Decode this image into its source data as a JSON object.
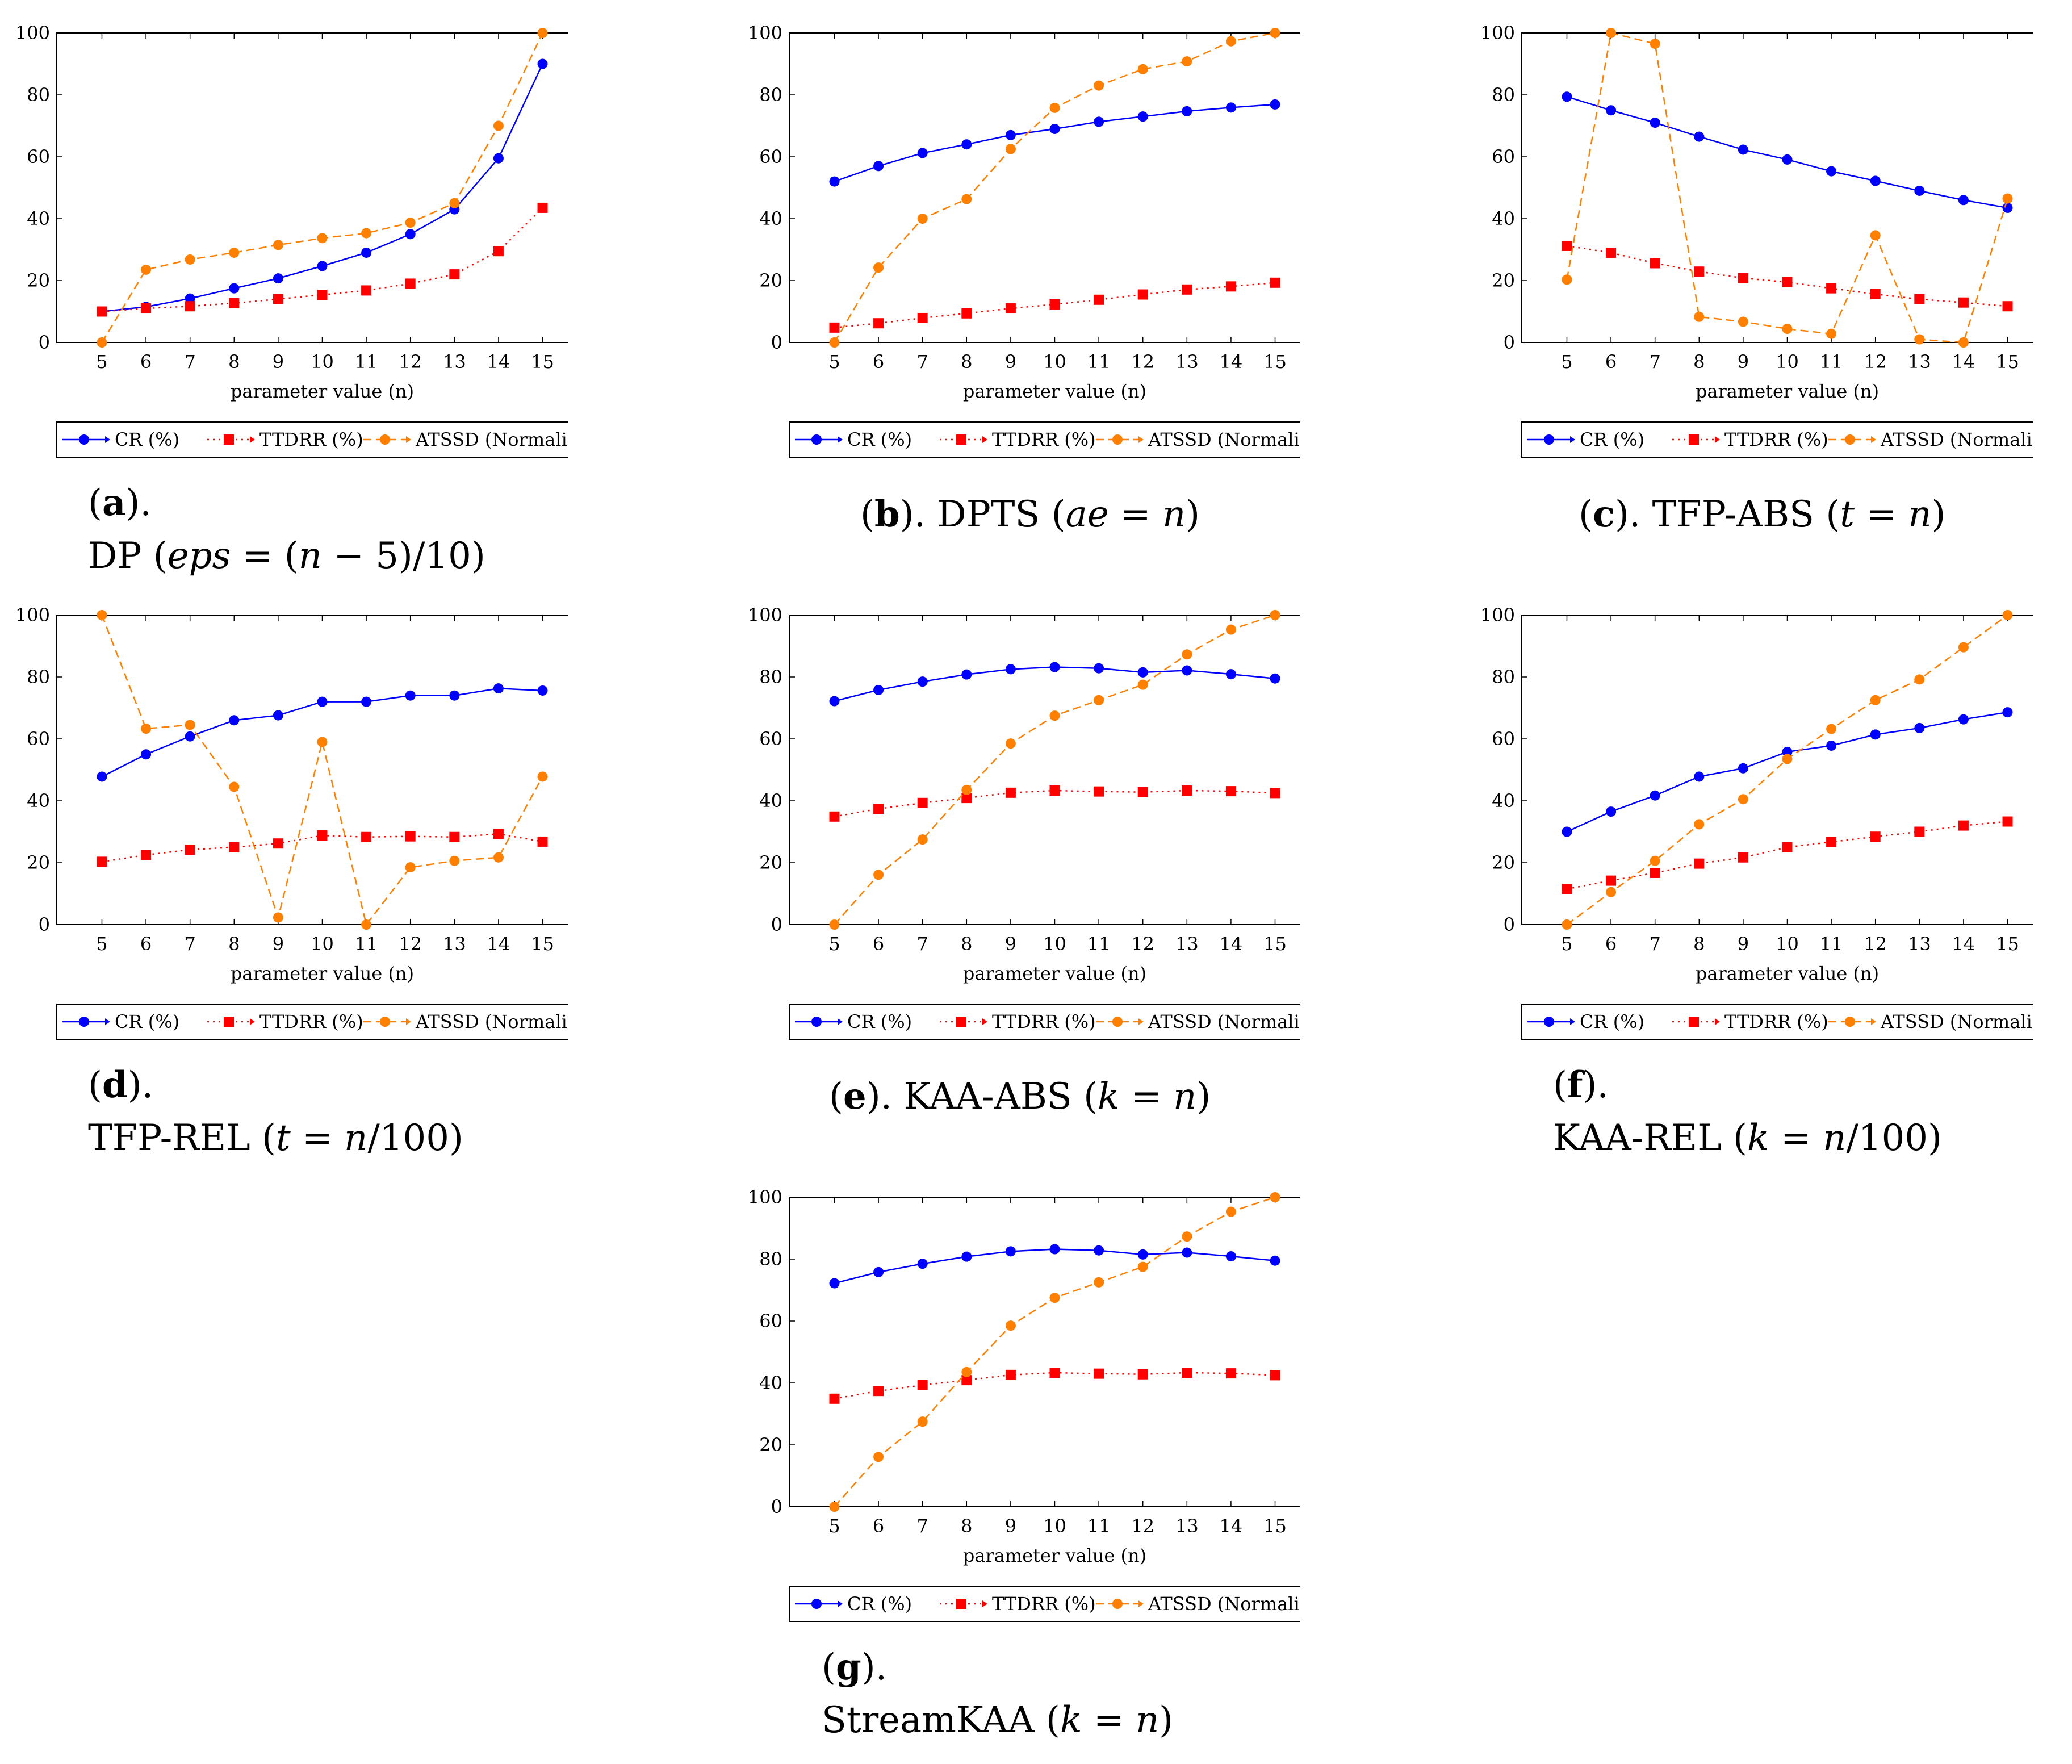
{
  "axis_xlabel": "parameter value (n)",
  "legend_labels": {
    "cr": "CR (%)",
    "ttdrr": "TTDRR (%)",
    "atssd": "ATSSD (Normalized)"
  },
  "colors": {
    "cr": "#0000ff",
    "ttdrr": "#ff0000",
    "atssd": "#ff8000"
  },
  "chart_data": [
    {
      "id": "a",
      "type": "line",
      "label": "a",
      "caption_parts": [
        "DP (",
        "eps",
        " = (",
        "n",
        " − 5)/10)"
      ],
      "x": [
        5,
        6,
        7,
        8,
        9,
        10,
        11,
        12,
        13,
        14,
        15
      ],
      "ylim": [
        0,
        100
      ],
      "yticks": [
        0,
        20,
        40,
        60,
        80,
        100
      ],
      "xlabel": "parameter value (n)",
      "series": [
        {
          "name": "CR (%)",
          "key": "cr",
          "values": [
            10,
            11.5,
            14.2,
            17.5,
            20.7,
            24.7,
            29,
            35,
            43,
            59.5,
            90
          ]
        },
        {
          "name": "TTDRR (%)",
          "key": "ttdrr",
          "values": [
            10,
            11,
            11.7,
            12.7,
            14,
            15.4,
            16.8,
            19,
            22,
            29.5,
            43.5
          ]
        },
        {
          "name": "ATSSD (Normalized)",
          "key": "atssd",
          "values": [
            0,
            23.5,
            26.8,
            29,
            31.5,
            33.7,
            35.3,
            38.7,
            45,
            70,
            100
          ]
        }
      ]
    },
    {
      "id": "b",
      "type": "line",
      "label": "b",
      "caption_parts": [
        "DPTS (",
        "ae",
        " = ",
        "n",
        ")"
      ],
      "x": [
        5,
        6,
        7,
        8,
        9,
        10,
        11,
        12,
        13,
        14,
        15
      ],
      "ylim": [
        0,
        100
      ],
      "yticks": [
        0,
        20,
        40,
        60,
        80,
        100
      ],
      "xlabel": "parameter value (n)",
      "series": [
        {
          "name": "CR (%)",
          "key": "cr",
          "values": [
            52,
            57,
            61.2,
            64,
            67,
            69,
            71.3,
            73,
            74.7,
            75.9,
            76.9
          ]
        },
        {
          "name": "TTDRR (%)",
          "key": "ttdrr",
          "values": [
            4.8,
            6.2,
            7.9,
            9.4,
            11,
            12.3,
            13.8,
            15.5,
            17.1,
            18.1,
            19.3
          ]
        },
        {
          "name": "ATSSD (Normalized)",
          "key": "atssd",
          "values": [
            0,
            24.2,
            40,
            46.3,
            62.5,
            75.8,
            83,
            88.3,
            90.8,
            97.3,
            100
          ]
        }
      ]
    },
    {
      "id": "c",
      "type": "line",
      "label": "c",
      "caption_parts": [
        "TFP-ABS (",
        "t",
        " = ",
        "n",
        ")"
      ],
      "x": [
        5,
        6,
        7,
        8,
        9,
        10,
        11,
        12,
        13,
        14,
        15
      ],
      "ylim": [
        0,
        100
      ],
      "yticks": [
        0,
        20,
        40,
        60,
        80,
        100
      ],
      "xlabel": "parameter value (n)",
      "series": [
        {
          "name": "CR (%)",
          "key": "cr",
          "values": [
            79.4,
            75,
            71,
            66.5,
            62.3,
            59.1,
            55.3,
            52.2,
            49,
            46,
            43.5
          ]
        },
        {
          "name": "TTDRR (%)",
          "key": "ttdrr",
          "values": [
            31.2,
            29,
            25.6,
            22.9,
            20.8,
            19.5,
            17.5,
            15.6,
            14,
            12.9,
            11.7
          ]
        },
        {
          "name": "ATSSD (Normalized)",
          "key": "atssd",
          "values": [
            20.3,
            100,
            96.5,
            8.3,
            6.7,
            4.4,
            2.8,
            34.6,
            1,
            0,
            46.5
          ]
        }
      ]
    },
    {
      "id": "d",
      "type": "line",
      "label": "d",
      "caption_parts": [
        "TFP-REL (",
        "t",
        " = ",
        "n",
        "/100)"
      ],
      "x": [
        5,
        6,
        7,
        8,
        9,
        10,
        11,
        12,
        13,
        14,
        15
      ],
      "ylim": [
        0,
        100
      ],
      "yticks": [
        0,
        20,
        40,
        60,
        80,
        100
      ],
      "xlabel": "parameter value (n)",
      "series": [
        {
          "name": "CR (%)",
          "key": "cr",
          "values": [
            47.8,
            55,
            60.8,
            66,
            67.6,
            72,
            72,
            74,
            74,
            76.3,
            75.6
          ]
        },
        {
          "name": "TTDRR (%)",
          "key": "ttdrr",
          "values": [
            20.3,
            22.5,
            24.2,
            25,
            26.2,
            28.8,
            28.3,
            28.5,
            28.3,
            29.3,
            26.8
          ]
        },
        {
          "name": "ATSSD (Normalized)",
          "key": "atssd",
          "values": [
            100,
            63.3,
            64.5,
            44.5,
            2.3,
            59,
            0,
            18.5,
            20.6,
            21.7,
            47.8
          ]
        }
      ]
    },
    {
      "id": "e",
      "type": "line",
      "label": "e",
      "caption_parts": [
        "KAA-ABS (",
        "k",
        " = ",
        "n",
        ")"
      ],
      "x": [
        5,
        6,
        7,
        8,
        9,
        10,
        11,
        12,
        13,
        14,
        15
      ],
      "ylim": [
        0,
        100
      ],
      "yticks": [
        0,
        20,
        40,
        60,
        80,
        100
      ],
      "xlabel": "parameter value (n)",
      "series": [
        {
          "name": "CR (%)",
          "key": "cr",
          "values": [
            72.2,
            75.8,
            78.5,
            80.8,
            82.5,
            83.2,
            82.8,
            81.5,
            82.1,
            80.9,
            79.5
          ]
        },
        {
          "name": "TTDRR (%)",
          "key": "ttdrr",
          "values": [
            34.9,
            37.4,
            39.3,
            40.9,
            42.6,
            43.3,
            43,
            42.8,
            43.3,
            43.1,
            42.5
          ]
        },
        {
          "name": "ATSSD (Normalized)",
          "key": "atssd",
          "values": [
            0,
            16.1,
            27.5,
            43.5,
            58.5,
            67.5,
            72.5,
            77.5,
            87.3,
            95.3,
            100
          ]
        }
      ]
    },
    {
      "id": "f",
      "type": "line",
      "label": "f",
      "caption_parts": [
        "KAA-REL (",
        "k",
        " = ",
        "n",
        "/100)"
      ],
      "x": [
        5,
        6,
        7,
        8,
        9,
        10,
        11,
        12,
        13,
        14,
        15
      ],
      "ylim": [
        0,
        100
      ],
      "yticks": [
        0,
        20,
        40,
        60,
        80,
        100
      ],
      "xlabel": "parameter value (n)",
      "series": [
        {
          "name": "CR (%)",
          "key": "cr",
          "values": [
            30,
            36.5,
            41.7,
            47.8,
            50.5,
            55.8,
            57.8,
            61.4,
            63.5,
            66.3,
            68.6
          ]
        },
        {
          "name": "TTDRR (%)",
          "key": "ttdrr",
          "values": [
            11.5,
            14.2,
            16.7,
            19.7,
            21.7,
            25,
            26.7,
            28.4,
            30,
            32,
            33.3
          ]
        },
        {
          "name": "ATSSD (Normalized)",
          "key": "atssd",
          "values": [
            0,
            10.5,
            20.6,
            32.4,
            40.5,
            53.5,
            63.2,
            72.5,
            79.2,
            89.6,
            100
          ]
        }
      ]
    },
    {
      "id": "g",
      "type": "line",
      "label": "g",
      "caption_parts": [
        "StreamKAA (",
        "k",
        " = ",
        "n",
        ")"
      ],
      "x": [
        5,
        6,
        7,
        8,
        9,
        10,
        11,
        12,
        13,
        14,
        15
      ],
      "ylim": [
        0,
        100
      ],
      "yticks": [
        0,
        20,
        40,
        60,
        80,
        100
      ],
      "xlabel": "parameter value (n)",
      "series": [
        {
          "name": "CR (%)",
          "key": "cr",
          "values": [
            72.2,
            75.8,
            78.5,
            80.8,
            82.5,
            83.2,
            82.8,
            81.5,
            82.1,
            80.9,
            79.5
          ]
        },
        {
          "name": "TTDRR (%)",
          "key": "ttdrr",
          "values": [
            34.9,
            37.4,
            39.3,
            40.9,
            42.6,
            43.3,
            43,
            42.8,
            43.3,
            43.1,
            42.5
          ]
        },
        {
          "name": "ATSSD (Normalized)",
          "key": "atssd",
          "values": [
            0,
            16.1,
            27.5,
            43.5,
            58.5,
            67.5,
            72.5,
            77.5,
            87.3,
            95.3,
            100
          ]
        }
      ]
    }
  ]
}
